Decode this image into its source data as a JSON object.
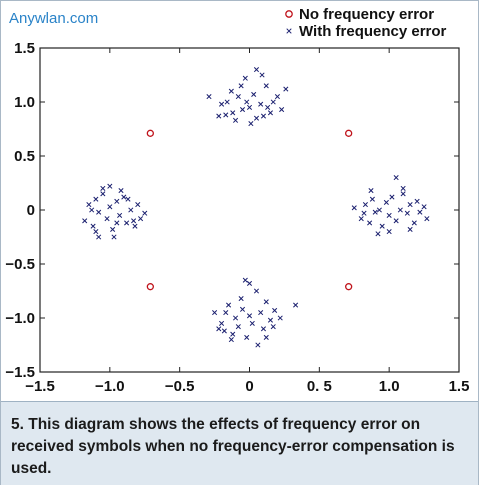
{
  "watermark": "Anywlan.com",
  "caption": "5. This diagram shows the effects of frequency error on received symbols when no frequency-error compensation is used.",
  "colors": {
    "no_error": "#c0141c",
    "with_error": "#1a1f6e",
    "caption_bg": "#dfe8f0",
    "watermark": "#2a83c8"
  },
  "chart_data": {
    "type": "scatter",
    "title": "",
    "xlabel": "",
    "ylabel": "",
    "xlim": [
      -1.5,
      1.5
    ],
    "ylim": [
      -1.5,
      1.5
    ],
    "x_ticks": [
      -1.5,
      -1.0,
      -0.5,
      0,
      0.5,
      1.0,
      1.5
    ],
    "x_tick_labels": [
      "−1.5",
      "−1.0",
      "−0.5",
      "0",
      "0. 5",
      "1.0",
      "1.5"
    ],
    "y_ticks": [
      1.5,
      1.0,
      0.5,
      0,
      -0.5,
      -1.0,
      -1.5
    ],
    "y_tick_labels": [
      "1.5",
      "1.0",
      "0.5",
      "0",
      "−0.5",
      "−1.0",
      "−1.5"
    ],
    "grid": false,
    "legend_position": "top-right",
    "series": [
      {
        "name": "No frequency error",
        "marker": "circle",
        "color": "#c0141c",
        "points": [
          [
            -0.71,
            0.71
          ],
          [
            0.71,
            0.71
          ],
          [
            -0.71,
            -0.71
          ],
          [
            0.71,
            -0.71
          ]
        ]
      },
      {
        "name": "With frequency error",
        "marker": "x",
        "color": "#1a1f6e",
        "points": [
          [
            -0.29,
            1.05
          ],
          [
            -0.2,
            0.98
          ],
          [
            -0.17,
            0.88
          ],
          [
            -0.13,
            1.1
          ],
          [
            -0.12,
            0.9
          ],
          [
            -0.08,
            1.05
          ],
          [
            -0.05,
            0.93
          ],
          [
            -0.02,
            1.0
          ],
          [
            0.0,
            0.95
          ],
          [
            0.03,
            1.07
          ],
          [
            0.05,
            0.85
          ],
          [
            0.08,
            0.98
          ],
          [
            0.12,
            1.15
          ],
          [
            0.15,
            0.9
          ],
          [
            0.2,
            1.05
          ],
          [
            0.26,
            1.12
          ],
          [
            -0.03,
            1.22
          ],
          [
            0.05,
            1.3
          ],
          [
            -0.1,
            0.83
          ],
          [
            0.01,
            0.8
          ],
          [
            0.1,
            0.87
          ],
          [
            -0.16,
            1.0
          ],
          [
            0.17,
            1.0
          ],
          [
            -0.06,
            1.15
          ],
          [
            0.13,
            0.95
          ],
          [
            -0.22,
            0.87
          ],
          [
            0.23,
            0.93
          ],
          [
            0.09,
            1.25
          ],
          [
            -1.18,
            -0.1
          ],
          [
            -1.15,
            0.05
          ],
          [
            -1.12,
            -0.15
          ],
          [
            -1.1,
            0.1
          ],
          [
            -1.08,
            -0.02
          ],
          [
            -1.05,
            0.15
          ],
          [
            -1.02,
            -0.08
          ],
          [
            -1.0,
            0.03
          ],
          [
            -0.98,
            -0.18
          ],
          [
            -0.95,
            0.08
          ],
          [
            -0.93,
            -0.05
          ],
          [
            -0.9,
            0.12
          ],
          [
            -0.88,
            -0.12
          ],
          [
            -0.85,
            0.0
          ],
          [
            -0.82,
            -0.15
          ],
          [
            -0.8,
            0.05
          ],
          [
            -0.78,
            -0.08
          ],
          [
            -0.75,
            -0.03
          ],
          [
            -1.05,
            0.2
          ],
          [
            -0.97,
            -0.25
          ],
          [
            -1.1,
            -0.2
          ],
          [
            -0.92,
            0.18
          ],
          [
            -1.13,
            0.0
          ],
          [
            -0.87,
            0.1
          ],
          [
            -1.0,
            0.22
          ],
          [
            -0.83,
            -0.1
          ],
          [
            -1.08,
            -0.25
          ],
          [
            -0.95,
            -0.12
          ],
          [
            0.75,
            0.02
          ],
          [
            0.8,
            -0.08
          ],
          [
            0.83,
            0.05
          ],
          [
            0.86,
            -0.12
          ],
          [
            0.88,
            0.1
          ],
          [
            0.9,
            -0.02
          ],
          [
            0.93,
            0.0
          ],
          [
            0.95,
            -0.15
          ],
          [
            0.98,
            0.07
          ],
          [
            1.0,
            -0.05
          ],
          [
            1.02,
            0.12
          ],
          [
            1.05,
            -0.1
          ],
          [
            1.08,
            0.0
          ],
          [
            1.1,
            0.15
          ],
          [
            1.13,
            -0.03
          ],
          [
            1.15,
            0.05
          ],
          [
            1.18,
            -0.12
          ],
          [
            1.2,
            0.08
          ],
          [
            1.22,
            -0.02
          ],
          [
            1.25,
            0.03
          ],
          [
            1.05,
            0.3
          ],
          [
            1.0,
            -0.2
          ],
          [
            0.87,
            0.18
          ],
          [
            0.92,
            -0.22
          ],
          [
            1.1,
            0.2
          ],
          [
            1.15,
            -0.18
          ],
          [
            0.82,
            -0.03
          ],
          [
            1.27,
            -0.08
          ],
          [
            -0.25,
            -0.95
          ],
          [
            -0.2,
            -1.05
          ],
          [
            -0.18,
            -1.12
          ],
          [
            -0.15,
            -0.88
          ],
          [
            -0.12,
            -1.15
          ],
          [
            -0.1,
            -1.0
          ],
          [
            -0.08,
            -1.08
          ],
          [
            -0.05,
            -0.92
          ],
          [
            -0.02,
            -1.18
          ],
          [
            0.0,
            -0.98
          ],
          [
            0.02,
            -1.05
          ],
          [
            0.05,
            -0.75
          ],
          [
            0.08,
            -0.95
          ],
          [
            0.1,
            -1.1
          ],
          [
            0.12,
            -0.85
          ],
          [
            0.15,
            -1.02
          ],
          [
            0.18,
            -0.93
          ],
          [
            0.22,
            -1.0
          ],
          [
            0.33,
            -0.88
          ],
          [
            0.0,
            -0.68
          ],
          [
            -0.03,
            -0.65
          ],
          [
            -0.13,
            -1.2
          ],
          [
            0.06,
            -1.25
          ],
          [
            -0.22,
            -1.1
          ],
          [
            0.17,
            -1.08
          ],
          [
            -0.06,
            -0.82
          ],
          [
            0.12,
            -1.18
          ],
          [
            -0.17,
            -0.95
          ]
        ]
      }
    ]
  }
}
